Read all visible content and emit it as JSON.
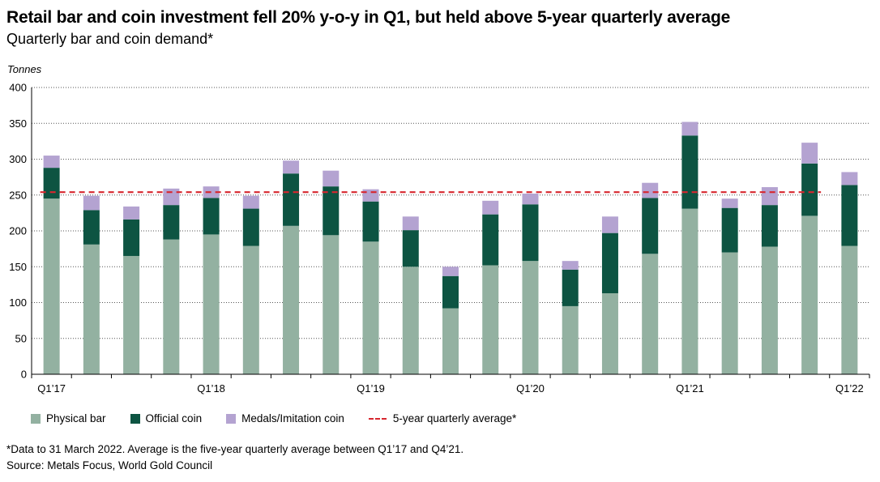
{
  "title": "Retail bar and coin investment fell 20% y-o-y in Q1, but held above 5-year quarterly average",
  "subtitle": "Quarterly bar and coin demand*",
  "footnote": "*Data to 31 March 2022. Average is the five-year quarterly average between Q1’17 and Q4’21.",
  "source": "Source: Metals Focus, World Gold Council",
  "colors": {
    "physical_bar": "#93b1a1",
    "official_coin": "#0d5442",
    "medals": "#b4a3d1",
    "average": "#d7272f"
  },
  "legend": {
    "physical_bar": "Physical bar",
    "official_coin": "Official coin",
    "medals": "Medals/Imitation coin",
    "average": "5-year quarterly average*"
  },
  "chart_data": {
    "type": "bar",
    "stacked": true,
    "ylabel": "Tonnes",
    "ylim": [
      0,
      400
    ],
    "yticks": [
      0,
      50,
      100,
      150,
      200,
      250,
      300,
      350,
      400
    ],
    "grid": true,
    "legend_position": "bottom",
    "x_tick_labels": [
      {
        "index": 0,
        "label": "Q1’17"
      },
      {
        "index": 4,
        "label": "Q1’18"
      },
      {
        "index": 8,
        "label": "Q1’19"
      },
      {
        "index": 12,
        "label": "Q1’20"
      },
      {
        "index": 16,
        "label": "Q1’21"
      },
      {
        "index": 20,
        "label": "Q1’22"
      }
    ],
    "categories": [
      "Q1’17",
      "Q2’17",
      "Q3’17",
      "Q4’17",
      "Q1’18",
      "Q2’18",
      "Q3’18",
      "Q4’18",
      "Q1’19",
      "Q2’19",
      "Q3’19",
      "Q4’19",
      "Q1’20",
      "Q2’20",
      "Q3’20",
      "Q4’20",
      "Q1’21",
      "Q2’21",
      "Q3’21",
      "Q4’21",
      "Q1’22"
    ],
    "series": [
      {
        "name": "Physical bar",
        "values": [
          245,
          181,
          165,
          188,
          195,
          179,
          207,
          194,
          185,
          150,
          92,
          152,
          158,
          95,
          113,
          168,
          231,
          170,
          178,
          221,
          179
        ]
      },
      {
        "name": "Official coin",
        "values": [
          43,
          48,
          51,
          48,
          51,
          52,
          73,
          68,
          56,
          51,
          45,
          71,
          79,
          51,
          84,
          78,
          102,
          62,
          58,
          73,
          85
        ]
      },
      {
        "name": "Medals/Imitation coin",
        "values": [
          17,
          20,
          18,
          23,
          16,
          18,
          18,
          22,
          17,
          19,
          13,
          19,
          15,
          12,
          23,
          21,
          19,
          13,
          25,
          29,
          18
        ]
      }
    ],
    "average": {
      "name": "5-year quarterly average*",
      "value": 254,
      "from_index": 0,
      "to_index": 19
    }
  }
}
